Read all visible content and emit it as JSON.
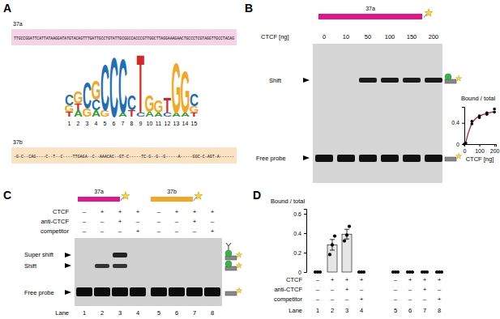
{
  "chart_data": [
    {
      "type": "scatter",
      "title": "Bound / total",
      "x_label": "CTCF [ng]",
      "xlim": [
        0,
        210
      ],
      "xticks": [
        0,
        100,
        200
      ],
      "ylim": [
        0,
        0.7
      ],
      "yticks": [
        0,
        0.4
      ],
      "series": [
        {
          "type": "scatter",
          "marker": "circle",
          "color": "#000000",
          "x": [
            0,
            0,
            10,
            50,
            50,
            100,
            100,
            150,
            150,
            200,
            200
          ],
          "values": [
            0,
            0,
            0.02,
            0.38,
            0.43,
            0.5,
            0.53,
            0.56,
            0.59,
            0.6,
            0.66
          ]
        },
        {
          "type": "line",
          "line_style": "solid",
          "color": "#b22222",
          "x": [
            0,
            10,
            25,
            50,
            75,
            100,
            150,
            200
          ],
          "values": [
            0,
            0.04,
            0.2,
            0.4,
            0.48,
            0.53,
            0.58,
            0.61
          ]
        }
      ]
    },
    {
      "type": "bar",
      "title": "Bound / total",
      "x_label": "Lane",
      "categories": [
        "1",
        "2",
        "3",
        "4",
        "5",
        "6",
        "7",
        "8"
      ],
      "values": [
        0,
        0.28,
        0.39,
        0,
        0,
        0,
        0,
        0
      ],
      "errors": [
        0,
        0.055,
        0.05,
        0,
        0,
        0,
        0,
        0
      ],
      "points": [
        [
          0,
          0,
          0
        ],
        [
          0.18,
          0.28,
          0.37
        ],
        [
          0.32,
          0.38,
          0.47
        ],
        [
          0,
          0,
          0
        ],
        [
          0,
          0,
          0
        ],
        [
          0,
          0,
          0
        ],
        [
          0,
          0,
          0
        ],
        [
          0,
          0,
          0
        ]
      ],
      "color": "#e6e6e6",
      "ylim": [
        0,
        0.65
      ],
      "yticks": [
        0,
        0.2,
        0.4,
        0.6
      ],
      "rows": [
        {
          "label": "CTCF",
          "signs": [
            "–",
            "+",
            "+",
            "+",
            "–",
            "+",
            "+",
            "+"
          ]
        },
        {
          "label": "anti-CTCF",
          "signs": [
            "–",
            "–",
            "+",
            "–",
            "–",
            "–",
            "+",
            "–"
          ]
        },
        {
          "label": "competitor",
          "signs": [
            "–",
            "–",
            "–",
            "+",
            "–",
            "–",
            "–",
            "+"
          ]
        }
      ]
    }
  ],
  "figure": {
    "letters": [
      "A",
      "B",
      "C",
      "D"
    ],
    "panel_a": {
      "seq_a": {
        "label": "37a",
        "color": "#f4d3e6",
        "sequence": "TTGCCGGATTCATTATAAGGATATGTACAGTTTGATTGCCTGTATTGCGGCCACCCGTTGGCTTAGGAAAGAACTGCCCTCGTAGGTTGCCTACAG"
      },
      "seq_b": {
        "label": "37b",
        "color": "#fbe2c2",
        "sequence": "-G-C--CAG----C--T--C----TTGAGA--C--AAACAC--GT-C-----TC-G--G--G-----A-----GGC-C-AGT-A------"
      },
      "letter_colors": {
        "A": "#2ca02c",
        "C": "#1f6fb4",
        "G": "#f5a623",
        "T": "#d62728"
      },
      "logo": [
        {
          "position": 1,
          "stack": [
            {
              "letter": "T",
              "height": 0.12
            },
            {
              "letter": "G",
              "height": 0.15
            },
            {
              "letter": "C",
              "height": 0.25
            }
          ]
        },
        {
          "position": 2,
          "stack": [
            {
              "letter": "A",
              "height": 0.15
            },
            {
              "letter": "T",
              "height": 0.15
            },
            {
              "letter": "G",
              "height": 0.3
            }
          ]
        },
        {
          "position": 3,
          "stack": [
            {
              "letter": "G",
              "height": 0.2
            },
            {
              "letter": "C",
              "height": 0.65
            }
          ]
        },
        {
          "position": 4,
          "stack": [
            {
              "letter": "A",
              "height": 0.15
            },
            {
              "letter": "C",
              "height": 0.25
            },
            {
              "letter": "G",
              "height": 0.45
            }
          ]
        },
        {
          "position": 5,
          "stack": [
            {
              "letter": "G",
              "height": 0.15
            },
            {
              "letter": "C",
              "height": 1.1
            }
          ]
        },
        {
          "position": 6,
          "stack": [
            {
              "letter": "C",
              "height": 1.45
            }
          ]
        },
        {
          "position": 7,
          "stack": [
            {
              "letter": "A",
              "height": 0.1
            },
            {
              "letter": "C",
              "height": 1.3
            }
          ]
        },
        {
          "position": 8,
          "stack": [
            {
              "letter": "T",
              "height": 0.15
            },
            {
              "letter": "C",
              "height": 0.35
            }
          ]
        },
        {
          "position": 9,
          "stack": [
            {
              "letter": "C",
              "height": 0.1
            },
            {
              "letter": "T",
              "height": 1.4
            }
          ]
        },
        {
          "position": 10,
          "stack": [
            {
              "letter": "A",
              "height": 0.12
            },
            {
              "letter": "G",
              "height": 0.4
            }
          ]
        },
        {
          "position": 11,
          "stack": [
            {
              "letter": "A",
              "height": 0.1
            },
            {
              "letter": "G",
              "height": 0.3
            }
          ]
        },
        {
          "position": 12,
          "stack": [
            {
              "letter": "C",
              "height": 0.1
            },
            {
              "letter": "T",
              "height": 0.35
            }
          ]
        },
        {
          "position": 13,
          "stack": [
            {
              "letter": "A",
              "height": 0.1
            },
            {
              "letter": "G",
              "height": 1.2
            }
          ]
        },
        {
          "position": 14,
          "stack": [
            {
              "letter": "A",
              "height": 0.1
            },
            {
              "letter": "G",
              "height": 1.0
            }
          ]
        },
        {
          "position": 15,
          "stack": [
            {
              "letter": "T",
              "height": 0.1
            },
            {
              "letter": "G",
              "height": 0.15
            },
            {
              "letter": "C",
              "height": 0.3
            }
          ]
        }
      ]
    },
    "panel_b": {
      "probe": {
        "label": "37a",
        "color": "#e0168a"
      },
      "amount_label": "CTCF [ng]",
      "amounts": [
        0,
        10,
        50,
        100,
        150,
        200
      ],
      "shift_label": "Shift",
      "free_label": "Free probe",
      "shift": [
        false,
        false,
        true,
        true,
        true,
        true
      ],
      "free": [
        true,
        true,
        true,
        true,
        true,
        true
      ]
    },
    "panel_c": {
      "probes": [
        {
          "label": "37a",
          "color": "#e0168a"
        },
        {
          "label": "37b",
          "color": "#f5a623"
        }
      ],
      "rows": [
        {
          "label": "CTCF",
          "signs": [
            "–",
            "+",
            "+",
            "+",
            "–",
            "+",
            "+",
            "+"
          ]
        },
        {
          "label": "anti-CTCF",
          "signs": [
            "–",
            "–",
            "+",
            "–",
            "–",
            "–",
            "+",
            "–"
          ]
        },
        {
          "label": "competitor",
          "signs": [
            "–",
            "–",
            "–",
            "+",
            "–",
            "–",
            "–",
            "+"
          ]
        }
      ],
      "super_shift_label": "Super shift",
      "shift_label": "Shift",
      "free_label": "Free probe",
      "lane_label": "Lane",
      "lanes": [
        1,
        2,
        3,
        4,
        5,
        6,
        7,
        8
      ],
      "super_shift": [
        false,
        false,
        true,
        false,
        false,
        false,
        false,
        false
      ],
      "shift": [
        false,
        true,
        true,
        false,
        false,
        false,
        false,
        false
      ],
      "free": [
        true,
        true,
        true,
        true,
        true,
        true,
        true,
        true
      ]
    }
  }
}
